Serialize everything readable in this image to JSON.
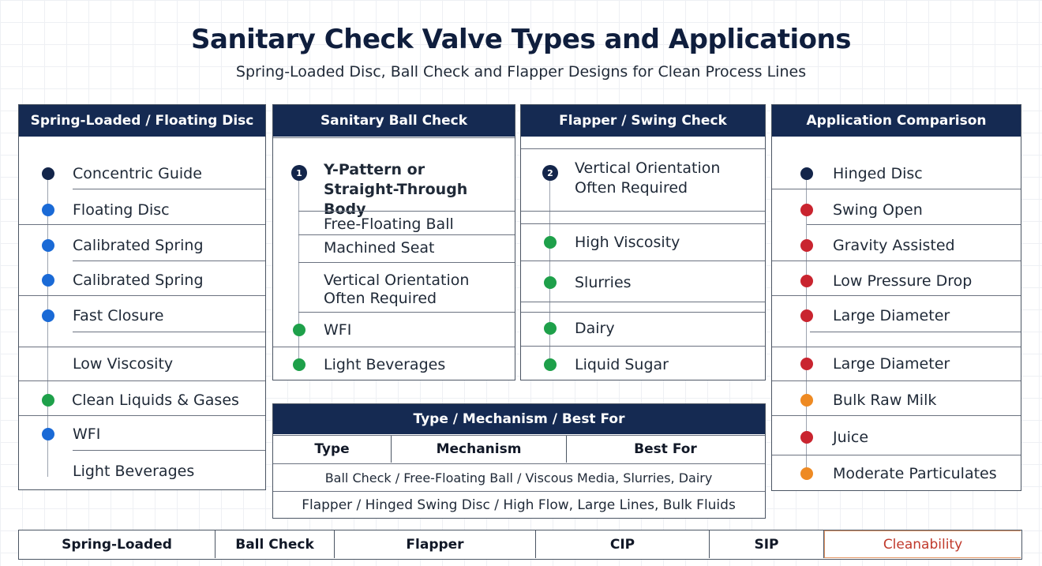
{
  "header": {
    "title": "Sanitary Check Valve Types and Applications",
    "subtitle": "Spring-Loaded Disc, Ball Check and Flapper Designs for Clean Process Lines"
  },
  "colors": {
    "navy": "#13254a",
    "blue": "#1a6ad6",
    "green": "#1ea04a",
    "red": "#c9242f",
    "orange": "#ee8a23",
    "header_bg": "#152a52"
  },
  "panels": {
    "spring": {
      "title": "Spring-Loaded / Floating Disc",
      "items": [
        {
          "label": "Concentric Guide",
          "marker": "navy"
        },
        {
          "label": "Floating Disc",
          "marker": "blue"
        },
        {
          "label": "Calibrated Spring",
          "marker": "blue"
        },
        {
          "label": "Calibrated Spring",
          "marker": "blue"
        },
        {
          "label": "Fast Closure",
          "marker": "blue"
        },
        {
          "label": "Low Viscosity",
          "marker": "none"
        },
        {
          "label": "Clean Liquids & Gases",
          "marker": "green"
        },
        {
          "label": "WFI",
          "marker": "blue"
        },
        {
          "label": "Light Beverages",
          "marker": "none"
        }
      ]
    },
    "ball": {
      "title": "Sanitary Ball Check",
      "step_number": "1",
      "items": [
        {
          "label": "Y-Pattern or Straight-Through Body",
          "marker": "number"
        },
        {
          "label": "Free-Floating Ball",
          "marker": "none"
        },
        {
          "label": "Machined Seat",
          "marker": "none"
        },
        {
          "label": "Vertical Orientation Often Required",
          "marker": "none"
        },
        {
          "label": "WFI",
          "marker": "green"
        },
        {
          "label": "Light Beverages",
          "marker": "green"
        }
      ]
    },
    "flapper": {
      "title": "Flapper / Swing Check",
      "step_number": "2",
      "items": [
        {
          "label": "Vertical Orientation Often Required",
          "marker": "number"
        },
        {
          "label": "High Viscosity",
          "marker": "green"
        },
        {
          "label": "Slurries",
          "marker": "green"
        },
        {
          "label": "Dairy",
          "marker": "green"
        },
        {
          "label": "Liquid Sugar",
          "marker": "green"
        }
      ]
    },
    "application": {
      "title": "Application Comparison",
      "items": [
        {
          "label": "Hinged Disc",
          "marker": "navy"
        },
        {
          "label": "Swing Open",
          "marker": "red"
        },
        {
          "label": "Gravity Assisted",
          "marker": "red"
        },
        {
          "label": "Low Pressure Drop",
          "marker": "red"
        },
        {
          "label": "Large Diameter",
          "marker": "red"
        },
        {
          "label": "Large Diameter",
          "marker": "red"
        },
        {
          "label": "Bulk Raw Milk",
          "marker": "orange"
        },
        {
          "label": "Juice",
          "marker": "red"
        },
        {
          "label": "Moderate Particulates",
          "marker": "orange"
        }
      ]
    }
  },
  "table": {
    "title": "Type / Mechanism / Best For",
    "headers": [
      "Type",
      "Mechanism",
      "Best For"
    ],
    "rows": [
      "Ball Check / Free-Floating Ball / Viscous Media, Slurries, Dairy",
      "Flapper / Hinged Swing Disc / High Flow, Large Lines, Bulk Fluids"
    ]
  },
  "bottom_bar": [
    "Spring-Loaded",
    "Ball Check",
    "Flapper",
    "CIP",
    "SIP",
    "Cleanability"
  ]
}
